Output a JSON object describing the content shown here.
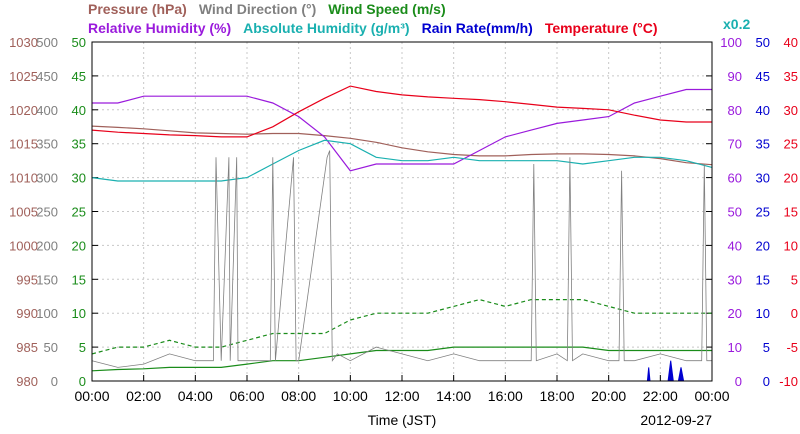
{
  "chart_data": {
    "type": "line",
    "date": "2012-09-27",
    "xlabel": "Time (JST)",
    "x_ticks": [
      "00:00",
      "02:00",
      "04:00",
      "06:00",
      "08:00",
      "10:00",
      "12:00",
      "14:00",
      "16:00",
      "18:00",
      "20:00",
      "22:00",
      "00:00"
    ],
    "legend_row1": [
      {
        "label": "Pressure (hPa)",
        "color": "#a0605a"
      },
      {
        "label": "Wind Direction (°)",
        "color": "#808080"
      },
      {
        "label": "Wind Speed (m/s)",
        "color": "#1a8c1a"
      }
    ],
    "legend_row2": [
      {
        "label": "Relative Humidity (%)",
        "color": "#9a1adc"
      },
      {
        "label": "Absolute Humidity (g/m³)",
        "color": "#1ab0b0"
      },
      {
        "label": "Rain Rate(mm/h)",
        "color": "#0000d0"
      },
      {
        "label": "Temperature (°C)",
        "color": "#e8001a"
      }
    ],
    "multiplier_label": "x0.2",
    "multiplier_color": "#1ab0b0",
    "axes": {
      "pressure": {
        "color": "#a0605a",
        "ticks": [
          "1030",
          "1025",
          "1020",
          "1015",
          "1010",
          "1005",
          "1000",
          "995",
          "990",
          "985",
          "980"
        ],
        "ylim": [
          980,
          1030
        ]
      },
      "wind_direction": {
        "color": "#808080",
        "ticks": [
          "500",
          "450",
          "400",
          "350",
          "300",
          "250",
          "200",
          "150",
          "100",
          "50",
          "0"
        ],
        "ylim": [
          0,
          500
        ]
      },
      "wind_speed": {
        "color": "#1a8c1a",
        "ticks": [
          "50",
          "45",
          "40",
          "35",
          "30",
          "25",
          "20",
          "15",
          "10",
          "5",
          "0"
        ],
        "ylim": [
          0,
          50
        ]
      },
      "humidity": {
        "color": "#9a1adc",
        "ticks": [
          "100",
          "90",
          "80",
          "70",
          "60",
          "50",
          "40",
          "30",
          "20",
          "10",
          "0"
        ],
        "ylim": [
          0,
          100
        ]
      },
      "rain_rate": {
        "color": "#0000d0",
        "ticks": [
          "50",
          "45",
          "40",
          "35",
          "30",
          "25",
          "20",
          "15",
          "10",
          "5",
          "0"
        ],
        "ylim": [
          0,
          50
        ]
      },
      "temperature": {
        "color": "#e8001a",
        "ticks": [
          "40",
          "35",
          "30",
          "25",
          "20",
          "15",
          "10",
          "5",
          "0",
          "-5",
          "-10"
        ],
        "ylim": [
          -10,
          40
        ]
      }
    },
    "series": [
      {
        "name": "Pressure (hPa)",
        "axis": "pressure",
        "color": "#a0605a",
        "x": [
          0,
          1,
          2,
          3,
          4,
          5,
          6,
          7,
          8,
          9,
          10,
          11,
          12,
          13,
          14,
          15,
          16,
          17,
          18,
          19,
          20,
          21,
          22,
          23,
          24
        ],
        "y": [
          1017.6,
          1017.4,
          1017.2,
          1016.9,
          1016.6,
          1016.5,
          1016.4,
          1016.5,
          1016.5,
          1016.2,
          1015.8,
          1015.2,
          1014.4,
          1013.8,
          1013.4,
          1013.2,
          1013.2,
          1013.4,
          1013.5,
          1013.5,
          1013.4,
          1013.2,
          1012.8,
          1012.2,
          1011.9
        ]
      },
      {
        "name": "Relative Humidity (%)",
        "axis": "humidity",
        "color": "#9a1adc",
        "x": [
          0,
          1,
          2,
          3,
          4,
          5,
          6,
          7,
          8,
          9,
          10,
          11,
          12,
          13,
          14,
          15,
          16,
          17,
          18,
          19,
          20,
          21,
          22,
          23,
          24
        ],
        "y": [
          82,
          82,
          84,
          84,
          84,
          84,
          84,
          82,
          78,
          72,
          62,
          64,
          64,
          64,
          64,
          68,
          72,
          74,
          76,
          77,
          78,
          82,
          84,
          86,
          86
        ]
      },
      {
        "name": "Absolute Humidity (g/m³)",
        "axis": "humidity",
        "color": "#1ab0b0",
        "x": [
          0,
          1,
          2,
          3,
          4,
          5,
          6,
          7,
          8,
          9,
          10,
          11,
          12,
          13,
          14,
          15,
          16,
          17,
          18,
          19,
          20,
          21,
          22,
          23,
          24
        ],
        "y": [
          60,
          59,
          59,
          59,
          59,
          59,
          60,
          64,
          68,
          71,
          70,
          66,
          65,
          65,
          66,
          65,
          65,
          65,
          65,
          64,
          65,
          66,
          66,
          65,
          63
        ]
      },
      {
        "name": "Temperature (°C)",
        "axis": "temperature",
        "color": "#e8001a",
        "x": [
          0,
          1,
          2,
          3,
          4,
          5,
          6,
          7,
          8,
          9,
          10,
          11,
          12,
          13,
          14,
          15,
          16,
          17,
          18,
          19,
          20,
          21,
          22,
          23,
          24
        ],
        "y": [
          27,
          26.7,
          26.5,
          26.3,
          26.2,
          26.0,
          26.0,
          27.5,
          29.7,
          31.7,
          33.5,
          32.7,
          32.2,
          31.9,
          31.7,
          31.5,
          31.2,
          30.8,
          30.4,
          30.2,
          30.0,
          29.2,
          28.5,
          28.2,
          28.2
        ]
      },
      {
        "name": "Wind Speed (m/s)",
        "axis": "wind_speed",
        "color": "#1a8c1a",
        "style": "dashed",
        "x": [
          0,
          1,
          2,
          3,
          4,
          5,
          6,
          7,
          8,
          9,
          10,
          11,
          12,
          13,
          14,
          15,
          16,
          17,
          18,
          19,
          20,
          21,
          22,
          23,
          24
        ],
        "y": [
          4,
          5,
          5,
          6,
          5,
          5,
          6,
          7,
          7,
          7,
          9,
          10,
          10,
          10,
          11,
          12,
          11,
          12,
          12,
          12,
          11,
          10,
          10,
          10,
          10
        ]
      },
      {
        "name": "Wind Speed (m/s)",
        "axis": "wind_speed",
        "color": "#1a8c1a",
        "style": "solid",
        "x": [
          0,
          1,
          2,
          3,
          4,
          5,
          6,
          7,
          8,
          9,
          10,
          11,
          12,
          13,
          14,
          15,
          16,
          17,
          18,
          19,
          20,
          21,
          22,
          23,
          24
        ],
        "y": [
          1.5,
          1.7,
          1.8,
          2,
          2,
          2,
          2.5,
          3,
          3,
          3.5,
          4,
          4.5,
          4.5,
          4.5,
          5,
          5,
          5,
          5,
          5,
          5,
          4.5,
          4.5,
          4.5,
          4.5,
          4.5
        ]
      },
      {
        "name": "Wind Direction (°)",
        "axis": "wind_direction",
        "color": "#808080",
        "x": [
          0,
          1,
          2,
          3,
          4,
          4.7,
          4.8,
          5,
          5.3,
          5.35,
          5.6,
          5.65,
          6,
          6.9,
          7,
          7.1,
          7.8,
          7.9,
          8,
          9.1,
          9.2,
          9.3,
          9.5,
          10,
          11,
          12,
          13,
          14,
          15,
          16,
          17,
          17.1,
          17.2,
          18,
          18.4,
          18.5,
          18.6,
          19,
          20,
          20.4,
          20.5,
          20.6,
          21,
          22,
          23,
          23.6,
          23.7,
          23.8,
          24
        ],
        "y": [
          30,
          20,
          25,
          40,
          30,
          30,
          330,
          30,
          330,
          30,
          330,
          30,
          30,
          30,
          330,
          30,
          330,
          30,
          30,
          330,
          340,
          30,
          40,
          30,
          50,
          40,
          30,
          40,
          30,
          30,
          30,
          320,
          30,
          40,
          30,
          330,
          30,
          40,
          30,
          30,
          310,
          30,
          30,
          40,
          30,
          30,
          320,
          30,
          30
        ]
      },
      {
        "name": "Rain Rate(mm/h)",
        "axis": "rain_rate",
        "color": "#0000d0",
        "x": [
          0,
          21,
          21.5,
          21.55,
          21.6,
          22,
          22.3,
          22.4,
          22.5,
          22.7,
          22.8,
          22.9,
          24
        ],
        "y": [
          0,
          0,
          0,
          2,
          0,
          0,
          0,
          3,
          0,
          0,
          2,
          0,
          0
        ]
      }
    ],
    "grid": true
  }
}
